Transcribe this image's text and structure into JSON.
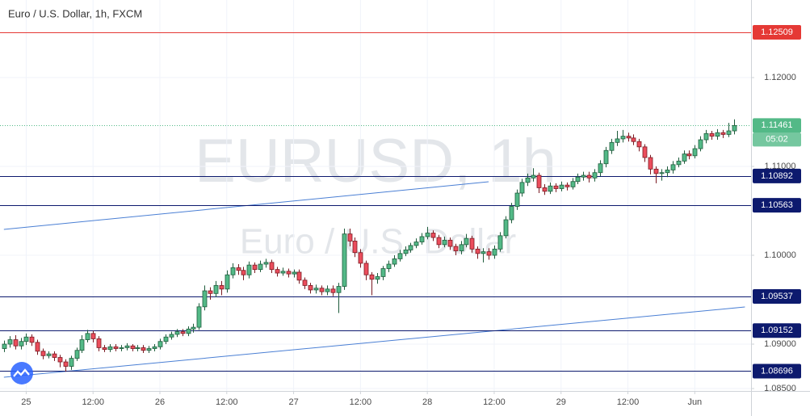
{
  "chart_data": {
    "type": "candlestick",
    "title": "Euro / U.S. Dollar, 1h, FXCM",
    "watermark": "EURUSD, 1h",
    "watermark_subtitle": "Euro / U.S. Dollar",
    "up_color": "#53b987",
    "down_color": "#eb4d5c",
    "open": [
      1.0895,
      1.09,
      1.0905,
      1.0898,
      1.0903,
      1.0908,
      1.0902,
      1.0892,
      1.0887,
      1.0889,
      1.0885,
      1.088,
      1.0875,
      1.0884,
      1.0893,
      1.0905,
      1.0912,
      1.0906,
      1.0896,
      1.0894,
      1.0897,
      1.0895,
      1.0896,
      1.0898,
      1.0895,
      1.0896,
      1.0893,
      1.0895,
      1.0897,
      1.0903,
      1.0908,
      1.0911,
      1.0914,
      1.0912,
      1.0917,
      1.0919,
      1.0942,
      1.096,
      1.0957,
      1.0966,
      1.0962,
      1.0978,
      1.0986,
      1.0983,
      1.0978,
      1.0989,
      1.0984,
      1.099,
      1.0992,
      1.0984,
      1.098,
      1.0982,
      1.0979,
      1.0981,
      1.0972,
      1.0966,
      1.0961,
      1.0963,
      1.0959,
      1.0962,
      1.0958,
      1.0965,
      1.1024,
      1.1016,
      1.1003,
      1.0991,
      1.0978,
      1.0973,
      1.0976,
      1.0985,
      1.099,
      1.0996,
      1.1002,
      1.1006,
      1.1011,
      1.1015,
      1.1021,
      1.1025,
      1.102,
      1.1012,
      1.1017,
      1.101,
      1.1005,
      1.1012,
      1.1019,
      1.1007,
      1.1002,
      1.1004,
      1.1,
      1.1007,
      1.1022,
      1.104,
      1.1055,
      1.107,
      1.1082,
      1.1087,
      1.109,
      1.1076,
      1.1072,
      1.1078,
      1.1075,
      1.1079,
      1.1077,
      1.1083,
      1.1088,
      1.109,
      1.1087,
      1.1093,
      1.1103,
      1.1118,
      1.1127,
      1.1131,
      1.1134,
      1.1132,
      1.1128,
      1.1122,
      1.111,
      1.1097,
      1.1092,
      1.1093,
      1.1096,
      1.1102,
      1.1106,
      1.1114,
      1.1112,
      1.112,
      1.113,
      1.1137,
      1.1134,
      1.1138,
      1.1136,
      1.114
    ],
    "high": [
      1.0904,
      1.0909,
      1.091,
      1.0907,
      1.0912,
      1.0911,
      1.0905,
      1.0895,
      1.0892,
      1.0892,
      1.0888,
      1.0883,
      1.0887,
      1.0896,
      1.091,
      1.0916,
      1.0915,
      1.0909,
      1.0899,
      1.09,
      1.09,
      1.0899,
      1.0901,
      1.09,
      1.0899,
      1.0899,
      1.0898,
      1.09,
      1.0906,
      1.0911,
      1.0914,
      1.0917,
      1.0917,
      1.092,
      1.0923,
      1.0946,
      1.0966,
      1.0964,
      1.0971,
      1.0971,
      1.0983,
      1.0991,
      1.099,
      1.0987,
      1.0993,
      1.0992,
      1.0994,
      1.0996,
      1.0995,
      1.0987,
      1.0986,
      1.0985,
      1.0984,
      1.0984,
      1.0975,
      1.0969,
      1.0967,
      1.0966,
      1.0966,
      1.0966,
      1.0969,
      1.103,
      1.103,
      1.102,
      1.1007,
      1.0994,
      1.0981,
      1.098,
      1.0988,
      1.0994,
      1.1,
      1.1006,
      1.101,
      1.1014,
      1.1019,
      1.1025,
      1.1032,
      1.1028,
      1.1023,
      1.1021,
      1.102,
      1.1013,
      1.1016,
      1.1024,
      1.1022,
      1.101,
      1.1008,
      1.1008,
      1.1011,
      1.1026,
      1.1044,
      1.1059,
      1.1074,
      1.1086,
      1.1092,
      1.1098,
      1.1093,
      1.108,
      1.1082,
      1.1081,
      1.1083,
      1.1082,
      1.1087,
      1.1092,
      1.1094,
      1.1094,
      1.1097,
      1.1107,
      1.1122,
      1.1131,
      1.114,
      1.1141,
      1.1138,
      1.1136,
      1.1131,
      1.1125,
      1.1113,
      1.11,
      1.1097,
      1.11,
      1.1106,
      1.111,
      1.1118,
      1.1118,
      1.1124,
      1.1134,
      1.1141,
      1.114,
      1.1142,
      1.1141,
      1.1149,
      1.1153
    ],
    "low": [
      1.0891,
      1.0896,
      1.0894,
      1.0894,
      1.0899,
      1.0898,
      1.0888,
      1.0883,
      1.0884,
      1.0881,
      1.0874,
      1.0869,
      1.0871,
      1.0881,
      1.089,
      1.0902,
      1.0902,
      1.0892,
      1.0891,
      1.0891,
      1.0892,
      1.0892,
      1.0893,
      1.0892,
      1.0892,
      1.089,
      1.089,
      1.0892,
      1.0894,
      1.09,
      1.0905,
      1.0908,
      1.0909,
      1.0909,
      1.0913,
      1.0916,
      1.0938,
      1.095,
      1.0953,
      1.0955,
      1.0958,
      1.0974,
      1.0978,
      1.0972,
      1.0974,
      1.098,
      1.0981,
      1.0986,
      1.098,
      1.0976,
      1.0977,
      1.0975,
      1.0975,
      1.0968,
      1.0962,
      1.0957,
      1.0957,
      1.0955,
      1.0955,
      1.0954,
      1.0935,
      1.0961,
      1.101,
      1.0998,
      1.0986,
      1.0972,
      1.0955,
      1.0968,
      1.0972,
      1.0981,
      1.0987,
      1.0993,
      1.0999,
      1.1003,
      1.1008,
      1.1012,
      1.1018,
      1.1016,
      1.1008,
      1.1009,
      1.1006,
      1.1,
      1.1001,
      1.1009,
      1.1003,
      1.0996,
      1.0992,
      1.0995,
      1.0996,
      1.1004,
      1.1019,
      1.1036,
      1.1051,
      1.1066,
      1.1078,
      1.1083,
      1.107,
      1.1068,
      1.1069,
      1.1071,
      1.1072,
      1.1073,
      1.1074,
      1.108,
      1.1084,
      1.1082,
      1.1083,
      1.1089,
      1.1099,
      1.1114,
      1.1123,
      1.1127,
      1.1128,
      1.1124,
      1.1117,
      1.1105,
      1.1091,
      1.1081,
      1.1084,
      1.1088,
      1.1092,
      1.1099,
      1.1103,
      1.1108,
      1.1109,
      1.1117,
      1.1126,
      1.113,
      1.113,
      1.1132,
      1.1133,
      1.1136
    ],
    "close": [
      1.09,
      1.0905,
      1.0898,
      1.0903,
      1.0908,
      1.0902,
      1.0892,
      1.0887,
      1.0889,
      1.0885,
      1.088,
      1.0875,
      1.0884,
      1.0893,
      1.0905,
      1.0912,
      1.0906,
      1.0896,
      1.0894,
      1.0897,
      1.0895,
      1.0896,
      1.0898,
      1.0895,
      1.0896,
      1.0893,
      1.0895,
      1.0897,
      1.0903,
      1.0908,
      1.0911,
      1.0914,
      1.0912,
      1.0917,
      1.0919,
      1.0942,
      1.096,
      1.0957,
      1.0966,
      1.0962,
      1.0978,
      1.0986,
      1.0983,
      1.0978,
      1.0989,
      1.0984,
      1.099,
      1.0992,
      1.0984,
      1.098,
      1.0982,
      1.0979,
      1.0981,
      1.0972,
      1.0966,
      1.0961,
      1.0963,
      1.0959,
      1.0962,
      1.0958,
      1.0965,
      1.1024,
      1.1016,
      1.1003,
      1.0991,
      1.0978,
      1.0973,
      1.0976,
      1.0985,
      1.099,
      1.0996,
      1.1002,
      1.1006,
      1.1011,
      1.1015,
      1.1021,
      1.1025,
      1.102,
      1.1012,
      1.1017,
      1.101,
      1.1005,
      1.1012,
      1.1019,
      1.1007,
      1.1002,
      1.1004,
      1.1,
      1.1007,
      1.1022,
      1.104,
      1.1055,
      1.107,
      1.1082,
      1.1087,
      1.109,
      1.1076,
      1.1072,
      1.1078,
      1.1075,
      1.1079,
      1.1077,
      1.1083,
      1.1088,
      1.109,
      1.1087,
      1.1093,
      1.1103,
      1.1118,
      1.1127,
      1.1131,
      1.1134,
      1.1132,
      1.1128,
      1.1122,
      1.111,
      1.1097,
      1.1092,
      1.1093,
      1.1096,
      1.1102,
      1.1106,
      1.1114,
      1.1112,
      1.112,
      1.113,
      1.1137,
      1.1134,
      1.1138,
      1.1136,
      1.114,
      1.1146
    ],
    "levels": [
      {
        "value": 1.12509,
        "color": "#e53935"
      },
      {
        "value": 1.10892,
        "color": "#0d1a6e"
      },
      {
        "value": 1.10563,
        "color": "#0d1a6e"
      },
      {
        "value": 1.09537,
        "color": "#0d1a6e"
      },
      {
        "value": 1.09152,
        "color": "#0d1a6e"
      },
      {
        "value": 1.08696,
        "color": "#0d1a6e"
      }
    ],
    "current_price": {
      "value": 1.11461,
      "countdown": "05:02",
      "color": "#53b987"
    },
    "trend_lines": [
      {
        "color": "#4a7fd4",
        "points": [
          [
            0,
            1.10291
          ],
          [
            87,
            1.10827
          ]
        ]
      },
      {
        "color": "#4a7fd4",
        "points": [
          [
            0,
            1.08627
          ],
          [
            133,
            1.09418
          ]
        ]
      }
    ],
    "xlim": [
      -0.7,
      134.1
    ],
    "ylim": [
      1.08473,
      1.12873
    ],
    "xticks": [
      {
        "value": 4,
        "label": "25"
      },
      {
        "value": 16,
        "label": "12:00"
      },
      {
        "value": 28,
        "label": "26"
      },
      {
        "value": 40,
        "label": "12:00"
      },
      {
        "value": 52,
        "label": "27"
      },
      {
        "value": 64,
        "label": "12:00"
      },
      {
        "value": 76,
        "label": "28"
      },
      {
        "value": 88,
        "label": "12:00"
      },
      {
        "value": 100,
        "label": "29"
      },
      {
        "value": 112,
        "label": "12:00"
      },
      {
        "value": 124,
        "label": "Jun"
      }
    ],
    "yticks": [
      {
        "value": 1.12,
        "label": "1.12000"
      },
      {
        "value": 1.11,
        "label": "1.11000"
      },
      {
        "value": 1.1,
        "label": "1.10000"
      },
      {
        "value": 1.09,
        "label": "1.09000"
      },
      {
        "value": 1.085,
        "label": "1.08500"
      }
    ],
    "grid": true
  }
}
